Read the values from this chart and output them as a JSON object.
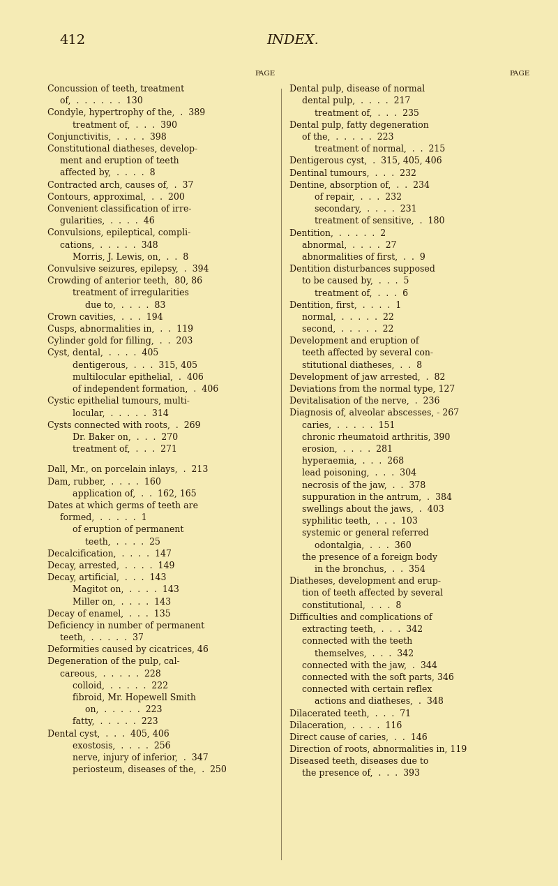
{
  "bg_color": "#f5ebb5",
  "text_color": "#2a1a0a",
  "page_number": "412",
  "page_title": "INDEX.",
  "left_entries": [
    {
      "text": "Concussion of teeth, treatment",
      "page": "",
      "indent": 0,
      "bold": true
    },
    {
      "text": "of,  .  .  .  .  .  .  130",
      "page": "",
      "indent": 1,
      "bold": false
    },
    {
      "text": "Condyle, hypertrophy of the,  .  389",
      "page": "",
      "indent": 0,
      "bold": true
    },
    {
      "text": "treatment of,  .  .  .  390",
      "page": "",
      "indent": 2,
      "bold": false
    },
    {
      "text": "Conjunctivitis,  .  .  .  .  398",
      "page": "",
      "indent": 0,
      "bold": true
    },
    {
      "text": "Constitutional diatheses, develop-",
      "page": "",
      "indent": 0,
      "bold": true
    },
    {
      "text": "ment and eruption of teeth",
      "page": "",
      "indent": 1,
      "bold": false
    },
    {
      "text": "affected by,  .  .  .  .  8",
      "page": "",
      "indent": 1,
      "bold": false
    },
    {
      "text": "Contracted arch, causes of,  .  37",
      "page": "",
      "indent": 0,
      "bold": true
    },
    {
      "text": "Contours, approximal,  .  .  200",
      "page": "",
      "indent": 0,
      "bold": true
    },
    {
      "text": "Convenient classification of irre-",
      "page": "",
      "indent": 0,
      "bold": true
    },
    {
      "text": "gularities,  .  .  .  .  46",
      "page": "",
      "indent": 1,
      "bold": false
    },
    {
      "text": "Convulsions, epileptical, compli-",
      "page": "",
      "indent": 0,
      "bold": true
    },
    {
      "text": "cations,  .  .  .  .  .  348",
      "page": "",
      "indent": 1,
      "bold": false
    },
    {
      "text": "Morris, J. Lewis, on,  .  .  8",
      "page": "",
      "indent": 2,
      "bold": false
    },
    {
      "text": "Convulsive seizures, epilepsy,  .  394",
      "page": "",
      "indent": 0,
      "bold": true
    },
    {
      "text": "Crowding of anterior teeth,  80, 86",
      "page": "",
      "indent": 0,
      "bold": true
    },
    {
      "text": "treatment of irregularities",
      "page": "",
      "indent": 2,
      "bold": false
    },
    {
      "text": "due to,  .  .  .  .  83",
      "page": "",
      "indent": 3,
      "bold": false
    },
    {
      "text": "Crown cavities,  .  .  .  194",
      "page": "",
      "indent": 0,
      "bold": true
    },
    {
      "text": "Cusps, abnormalities in,  .  .  119",
      "page": "",
      "indent": 0,
      "bold": true
    },
    {
      "text": "Cylinder gold for filling,  .  .  203",
      "page": "",
      "indent": 0,
      "bold": true
    },
    {
      "text": "Cyst, dental,  .  .  .  .  405",
      "page": "",
      "indent": 0,
      "bold": true
    },
    {
      "text": "dentigerous,  .  .  .  315, 405",
      "page": "",
      "indent": 2,
      "bold": false
    },
    {
      "text": "multilocular epithelial,  .  406",
      "page": "",
      "indent": 2,
      "bold": false
    },
    {
      "text": "of independent formation,  .  406",
      "page": "",
      "indent": 2,
      "bold": false
    },
    {
      "text": "Cystic epithelial tumours, multi-",
      "page": "",
      "indent": 0,
      "bold": true
    },
    {
      "text": "locular,  .  .  .  .  .  314",
      "page": "",
      "indent": 2,
      "bold": false
    },
    {
      "text": "Cysts connected with roots,  .  269",
      "page": "",
      "indent": 0,
      "bold": true
    },
    {
      "text": "Dr. Baker on,  .  .  .  270",
      "page": "",
      "indent": 2,
      "bold": false
    },
    {
      "text": "treatment of,  .  .  .  271",
      "page": "",
      "indent": 2,
      "bold": false
    },
    {
      "text": "",
      "page": "",
      "indent": 0,
      "bold": false
    },
    {
      "text": "Dall, Mr., on porcelain inlays,  .  213",
      "page": "",
      "indent": 0,
      "bold": true
    },
    {
      "text": "Dam, rubber,  .  .  .  .  160",
      "page": "",
      "indent": 0,
      "bold": true
    },
    {
      "text": "application of,  .  .  162, 165",
      "page": "",
      "indent": 2,
      "bold": false
    },
    {
      "text": "Dates at which germs of teeth are",
      "page": "",
      "indent": 0,
      "bold": true
    },
    {
      "text": "formed,  .  .  .  .  .  1",
      "page": "",
      "indent": 1,
      "bold": false
    },
    {
      "text": "of eruption of permanent",
      "page": "",
      "indent": 2,
      "bold": false
    },
    {
      "text": "teeth,  .  .  .  .  25",
      "page": "",
      "indent": 3,
      "bold": false
    },
    {
      "text": "Decalcification,  .  .  .  .  147",
      "page": "",
      "indent": 0,
      "bold": true
    },
    {
      "text": "Decay, arrested,  .  .  .  .  149",
      "page": "",
      "indent": 0,
      "bold": true
    },
    {
      "text": "Decay, artificial,  .  .  .  143",
      "page": "",
      "indent": 0,
      "bold": true
    },
    {
      "text": "Magitot on,  .  .  .  .  143",
      "page": "",
      "indent": 2,
      "bold": false
    },
    {
      "text": "Miller on,  .  .  .  .  143",
      "page": "",
      "indent": 2,
      "bold": false
    },
    {
      "text": "Decay of enamel,  .  .  .  135",
      "page": "",
      "indent": 0,
      "bold": true
    },
    {
      "text": "Deficiency in number of permanent",
      "page": "",
      "indent": 0,
      "bold": true
    },
    {
      "text": "teeth,  .  .  .  .  .  37",
      "page": "",
      "indent": 1,
      "bold": false
    },
    {
      "text": "Deformities caused by cicatrices, 46",
      "page": "",
      "indent": 0,
      "bold": true
    },
    {
      "text": "Degeneration of the pulp, cal-",
      "page": "",
      "indent": 0,
      "bold": true
    },
    {
      "text": "careous,  .  .  .  .  .  228",
      "page": "",
      "indent": 1,
      "bold": false
    },
    {
      "text": "colloid,  .  .  .  .  .  222",
      "page": "",
      "indent": 2,
      "bold": false
    },
    {
      "text": "fibroid, Mr. Hopewell Smith",
      "page": "",
      "indent": 2,
      "bold": false
    },
    {
      "text": "on,  .  .  .  .  .  223",
      "page": "",
      "indent": 3,
      "bold": false
    },
    {
      "text": "fatty,  .  .  .  .  .  223",
      "page": "",
      "indent": 2,
      "bold": false
    },
    {
      "text": "Dental cyst,  .  .  .  405, 406",
      "page": "",
      "indent": 0,
      "bold": true
    },
    {
      "text": "exostosis,  .  .  .  .  256",
      "page": "",
      "indent": 2,
      "bold": false
    },
    {
      "text": "nerve, injury of inferior,  .  347",
      "page": "",
      "indent": 2,
      "bold": false
    },
    {
      "text": "periosteum, diseases of the,  .  250",
      "page": "",
      "indent": 2,
      "bold": false
    }
  ],
  "right_entries": [
    {
      "text": "Dental pulp, disease of normal",
      "page": "",
      "indent": 0,
      "bold": true
    },
    {
      "text": "dental pulp,  .  .  .  .  217",
      "page": "",
      "indent": 1,
      "bold": false
    },
    {
      "text": "treatment of,  .  .  .  235",
      "page": "",
      "indent": 2,
      "bold": false
    },
    {
      "text": "Dental pulp, fatty degeneration",
      "page": "",
      "indent": 0,
      "bold": true
    },
    {
      "text": "of the,  .  .  .  .  .  223",
      "page": "",
      "indent": 1,
      "bold": false
    },
    {
      "text": "treatment of normal,  .  .  215",
      "page": "",
      "indent": 2,
      "bold": false
    },
    {
      "text": "Dentigerous cyst,  .  315, 405, 406",
      "page": "",
      "indent": 0,
      "bold": true
    },
    {
      "text": "Dentinal tumours,  .  .  .  232",
      "page": "",
      "indent": 0,
      "bold": true
    },
    {
      "text": "Dentine, absorption of,  .  .  234",
      "page": "",
      "indent": 0,
      "bold": true
    },
    {
      "text": "of repair,  .  .  .  232",
      "page": "",
      "indent": 2,
      "bold": false
    },
    {
      "text": "secondary,  .  .  .  .  231",
      "page": "",
      "indent": 2,
      "bold": false
    },
    {
      "text": "treatment of sensitive,  .  180",
      "page": "",
      "indent": 2,
      "bold": false
    },
    {
      "text": "Dentition,  .  .  .  .  .  2",
      "page": "",
      "indent": 0,
      "bold": true
    },
    {
      "text": "abnormal,  .  .  .  .  27",
      "page": "",
      "indent": 1,
      "bold": false
    },
    {
      "text": "abnormalities of first,  .  .  9",
      "page": "",
      "indent": 1,
      "bold": false
    },
    {
      "text": "Dentition disturbances supposed",
      "page": "",
      "indent": 0,
      "bold": true
    },
    {
      "text": "to be caused by,  .  .  .  5",
      "page": "",
      "indent": 1,
      "bold": false
    },
    {
      "text": "treatment of,  .  .  .  6",
      "page": "",
      "indent": 2,
      "bold": false
    },
    {
      "text": "Dentition, first,  .  .  .  .  1",
      "page": "",
      "indent": 0,
      "bold": true
    },
    {
      "text": "normal,  .  .  .  .  .  22",
      "page": "",
      "indent": 1,
      "bold": false
    },
    {
      "text": "second,  .  .  .  .  .  22",
      "page": "",
      "indent": 1,
      "bold": false
    },
    {
      "text": "Development and eruption of",
      "page": "",
      "indent": 0,
      "bold": true
    },
    {
      "text": "teeth affected by several con-",
      "page": "",
      "indent": 1,
      "bold": false
    },
    {
      "text": "stitutional diatheses,  .  .  8",
      "page": "",
      "indent": 1,
      "bold": false
    },
    {
      "text": "Development of jaw arrested,  .  82",
      "page": "",
      "indent": 0,
      "bold": true
    },
    {
      "text": "Deviations from the normal type, 127",
      "page": "",
      "indent": 0,
      "bold": true
    },
    {
      "text": "Devitalisation of the nerve,  .  236",
      "page": "",
      "indent": 0,
      "bold": true
    },
    {
      "text": "Diagnosis of, alveolar abscesses, - 267",
      "page": "",
      "indent": 0,
      "bold": true
    },
    {
      "text": "caries,  .  .  .  .  .  151",
      "page": "",
      "indent": 1,
      "bold": false
    },
    {
      "text": "chronic rheumatoid arthritis, 390",
      "page": "",
      "indent": 1,
      "bold": false
    },
    {
      "text": "erosion,  .  .  .  .  281",
      "page": "",
      "indent": 1,
      "bold": false
    },
    {
      "text": "hyperaemia,  .  .  .  268",
      "page": "",
      "indent": 1,
      "bold": false
    },
    {
      "text": "lead poisoning,  .  .  .  304",
      "page": "",
      "indent": 1,
      "bold": false
    },
    {
      "text": "necrosis of the jaw,  .  .  378",
      "page": "",
      "indent": 1,
      "bold": false
    },
    {
      "text": "suppuration in the antrum,  .  384",
      "page": "",
      "indent": 1,
      "bold": false
    },
    {
      "text": "swellings about the jaws,  .  403",
      "page": "",
      "indent": 1,
      "bold": false
    },
    {
      "text": "syphilitic teeth,  .  .  .  103",
      "page": "",
      "indent": 1,
      "bold": false
    },
    {
      "text": "systemic or general referred",
      "page": "",
      "indent": 1,
      "bold": false
    },
    {
      "text": "odontalgia,  .  .  .  360",
      "page": "",
      "indent": 2,
      "bold": false
    },
    {
      "text": "the presence of a foreign body",
      "page": "",
      "indent": 1,
      "bold": false
    },
    {
      "text": "in the bronchus,  .  .  354",
      "page": "",
      "indent": 2,
      "bold": false
    },
    {
      "text": "Diatheses, development and erup-",
      "page": "",
      "indent": 0,
      "bold": true
    },
    {
      "text": "tion of teeth affected by several",
      "page": "",
      "indent": 1,
      "bold": false
    },
    {
      "text": "constitutional,  .  .  .  8",
      "page": "",
      "indent": 1,
      "bold": false
    },
    {
      "text": "Difficulties and complications of",
      "page": "",
      "indent": 0,
      "bold": true
    },
    {
      "text": "extracting teeth,  .  .  .  342",
      "page": "",
      "indent": 1,
      "bold": false
    },
    {
      "text": "connected with the teeth",
      "page": "",
      "indent": 1,
      "bold": false
    },
    {
      "text": "themselves,  .  .  .  342",
      "page": "",
      "indent": 2,
      "bold": false
    },
    {
      "text": "connected with the jaw,  .  344",
      "page": "",
      "indent": 1,
      "bold": false
    },
    {
      "text": "connected with the soft parts, 346",
      "page": "",
      "indent": 1,
      "bold": false
    },
    {
      "text": "connected with certain reflex",
      "page": "",
      "indent": 1,
      "bold": false
    },
    {
      "text": "actions and diatheses,  .  348",
      "page": "",
      "indent": 2,
      "bold": false
    },
    {
      "text": "Dilacerated teeth,  .  .  .  71",
      "page": "",
      "indent": 0,
      "bold": true
    },
    {
      "text": "Dilaceration,  .  .  .  .  116",
      "page": "",
      "indent": 0,
      "bold": true
    },
    {
      "text": "Direct cause of caries,  .  .  146",
      "page": "",
      "indent": 0,
      "bold": true
    },
    {
      "text": "Direction of roots, abnormalities in, 119",
      "page": "",
      "indent": 0,
      "bold": true
    },
    {
      "text": "Diseased teeth, diseases due to",
      "page": "",
      "indent": 0,
      "bold": true
    },
    {
      "text": "the presence of,  .  .  .  393",
      "page": "",
      "indent": 1,
      "bold": false
    }
  ]
}
